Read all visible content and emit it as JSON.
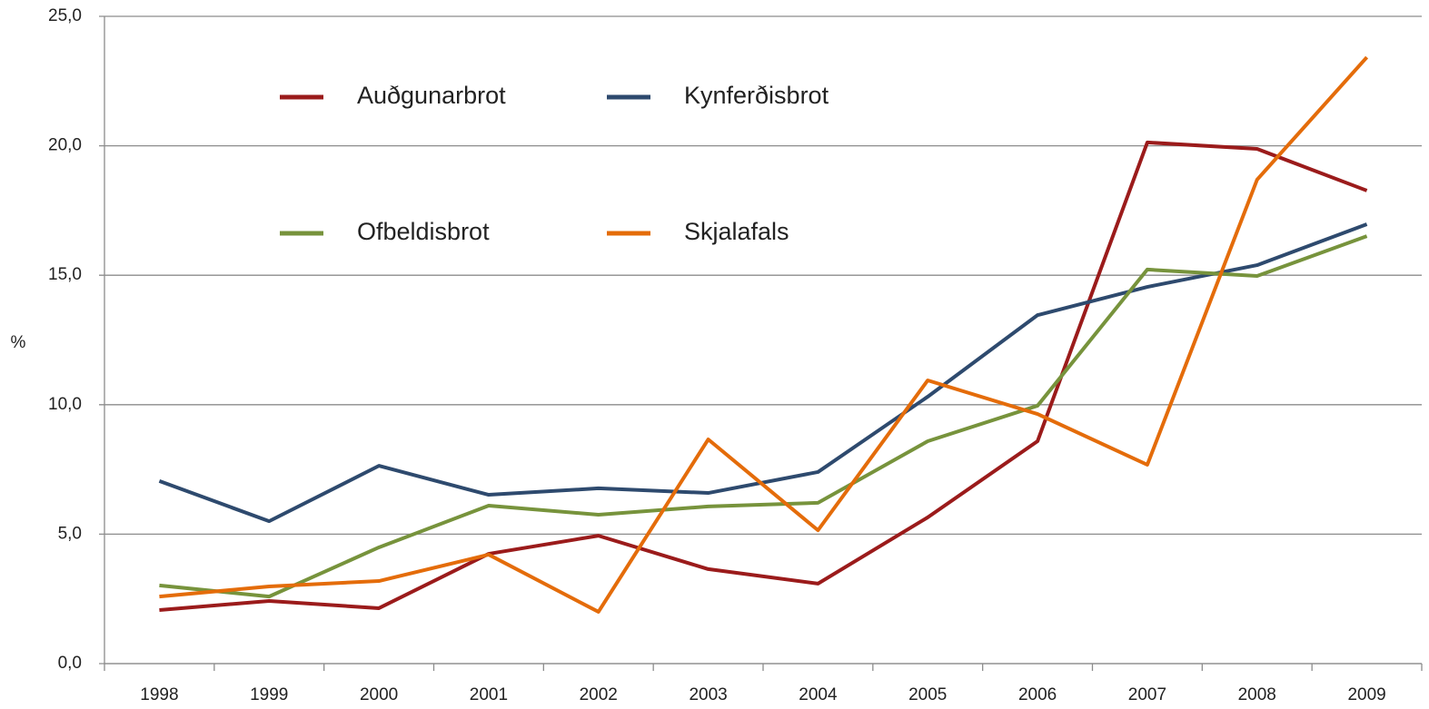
{
  "chart_data": {
    "type": "line",
    "y_label": "%",
    "categories": [
      "1998",
      "1999",
      "2000",
      "2001",
      "2002",
      "2003",
      "2004",
      "2005",
      "2006",
      "2007",
      "2008",
      "2009"
    ],
    "series": [
      {
        "name": "Auðgunarbrot",
        "color": "#9b1b1b",
        "values": [
          2.07,
          2.42,
          2.14,
          4.24,
          4.94,
          3.65,
          3.09,
          5.65,
          8.59,
          20.13,
          19.88,
          18.27
        ]
      },
      {
        "name": "Kynferðisbrot",
        "color": "#2e4a6e",
        "values": [
          7.05,
          5.5,
          7.64,
          6.52,
          6.77,
          6.59,
          7.4,
          10.31,
          13.46,
          14.55,
          15.39,
          16.97
        ]
      },
      {
        "name": "Ofbeldisbrot",
        "color": "#77933c",
        "values": [
          3.02,
          2.59,
          4.49,
          6.1,
          5.75,
          6.07,
          6.21,
          8.59,
          9.96,
          15.22,
          14.97,
          16.51
        ]
      },
      {
        "name": "Skjalafals",
        "color": "#e46c0a",
        "values": [
          2.59,
          2.98,
          3.19,
          4.21,
          2.0,
          8.66,
          5.15,
          10.94,
          9.64,
          7.68,
          18.69,
          23.42
        ]
      }
    ],
    "ylim": [
      0,
      25
    ],
    "yticks": [
      {
        "value": 0,
        "label": "0,0"
      },
      {
        "value": 5,
        "label": "5,0"
      },
      {
        "value": 10,
        "label": "10,0"
      },
      {
        "value": 15,
        "label": "15,0"
      },
      {
        "value": 20,
        "label": "20,0"
      },
      {
        "value": 25,
        "label": "25,0"
      }
    ],
    "grid": true
  }
}
